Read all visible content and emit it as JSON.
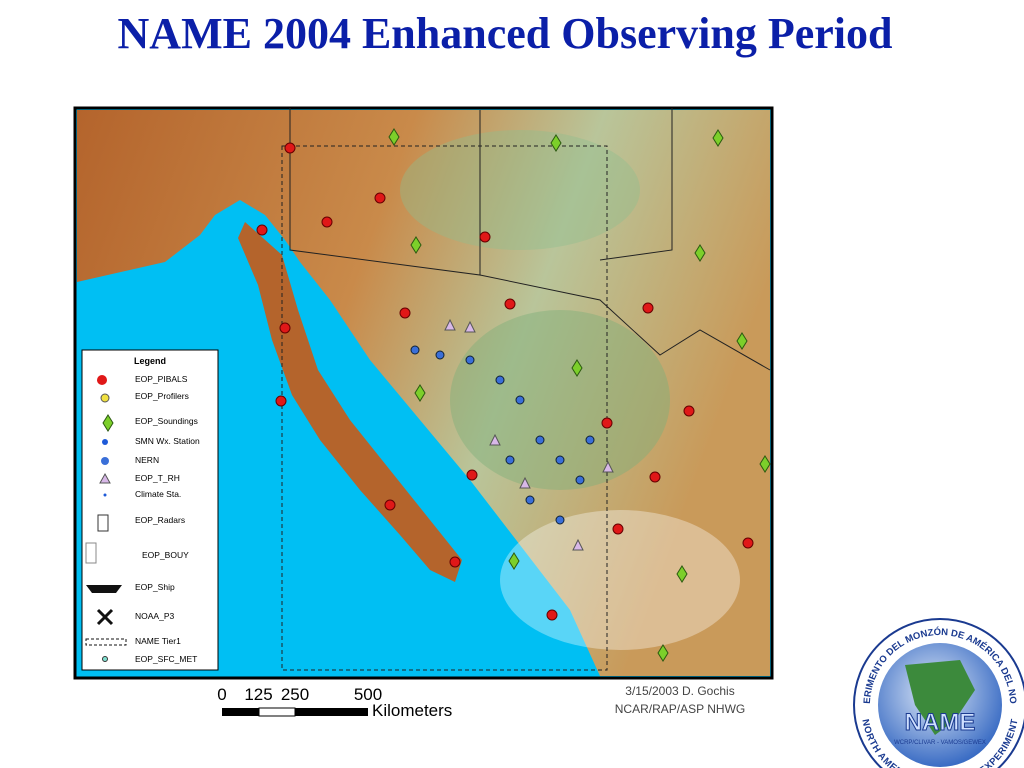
{
  "header": {
    "title": "NAME 2004 Enhanced Observing Period"
  },
  "legend": {
    "title": "Legend",
    "items": [
      "EOP_PIBALS",
      "EOP_Profilers",
      "EOP_Soundings",
      "SMN Wx. Station",
      "NERN",
      "EOP_T_RH",
      "Climate Sta.",
      "EOP_Radars",
      "EOP_BOUY",
      "EOP_Ship",
      "NOAA_P3",
      "NAME Tier1",
      "EOP_SFC_MET"
    ]
  },
  "scale": {
    "ticks": [
      0,
      125,
      250,
      500
    ],
    "unit": "Kilometers"
  },
  "credit": [
    "3/15/2003 D. Gochis",
    "NCAR/RAP/ASP  NHWG"
  ],
  "logo": {
    "name": "NAME",
    "top": "EXPERIMENTO DEL MONZÓN DE AMÉRICA DEL NORTE",
    "bottom": "NORTH AMERICAN MONSOON EXPERIMENT",
    "inner": "WCRP/CLIVAR - VAMOS/GEWEX"
  }
}
